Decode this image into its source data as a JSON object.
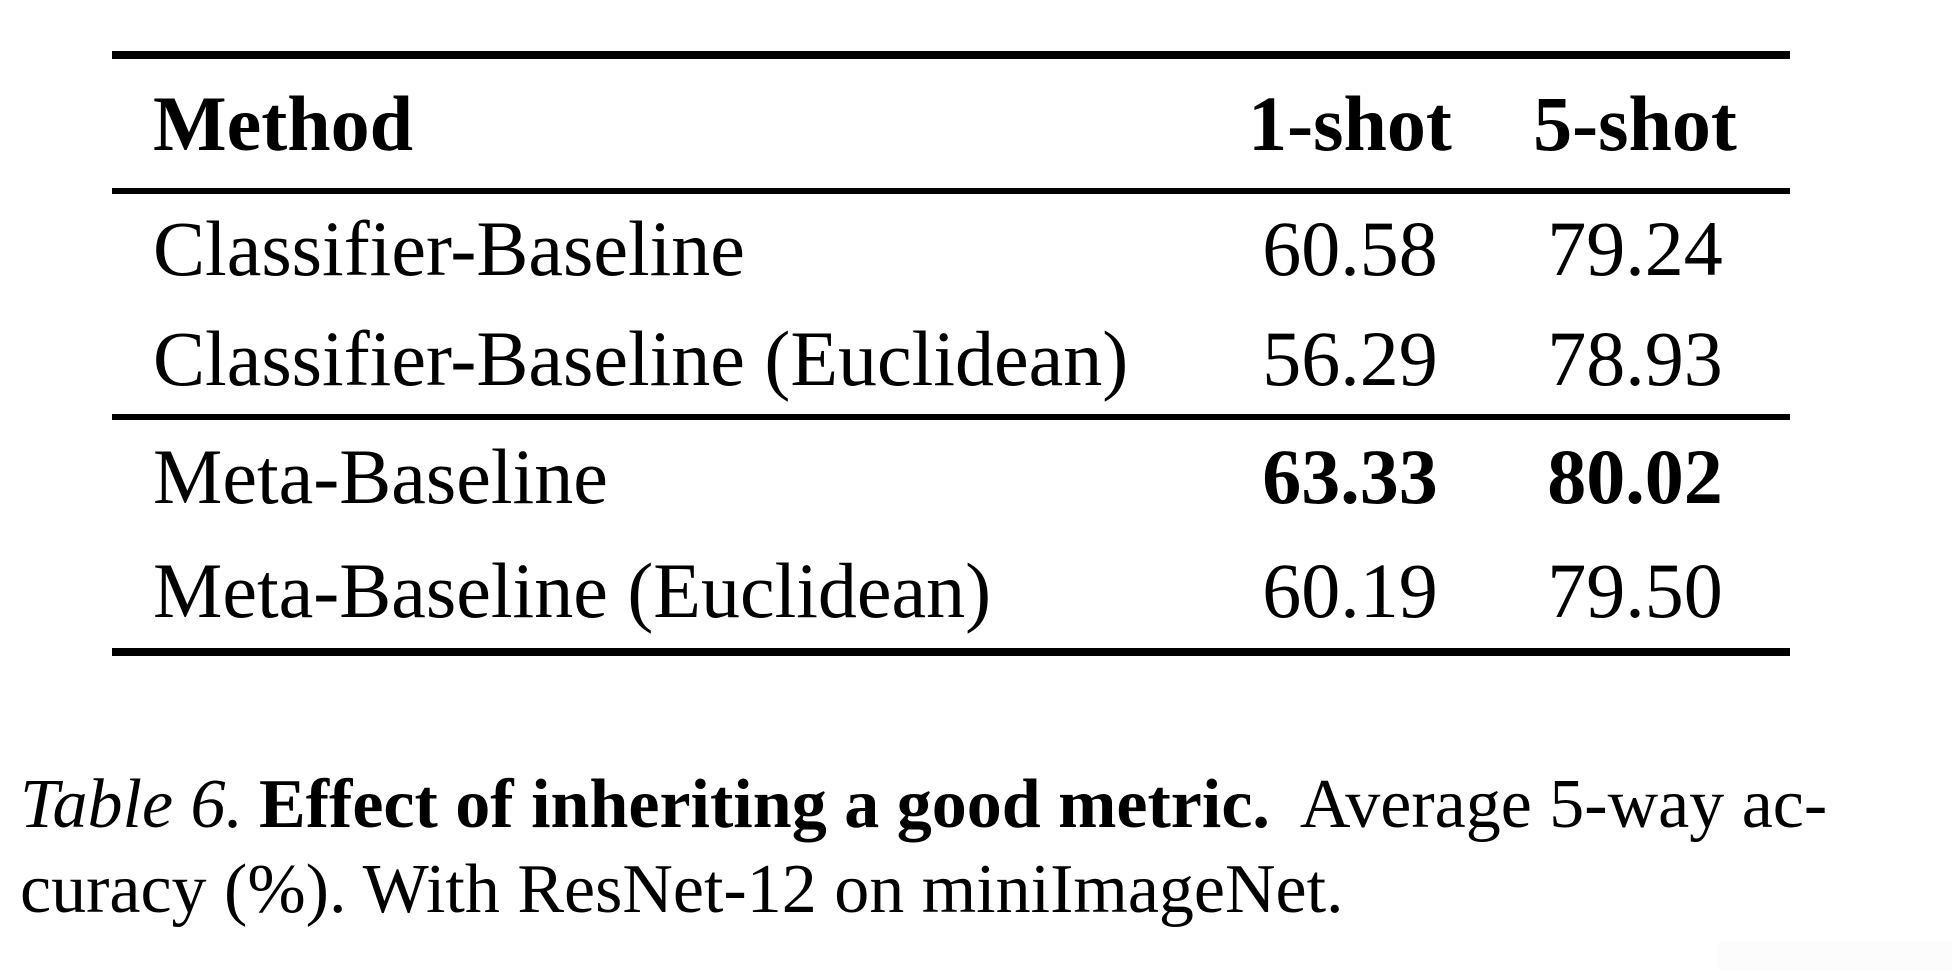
{
  "table": {
    "columns": [
      "Method",
      "1-shot",
      "5-shot"
    ],
    "groups": [
      {
        "rows": [
          {
            "method": "Classifier-Baseline",
            "one_shot": "60.58",
            "five_shot": "79.24"
          },
          {
            "method": "Classifier-Baseline (Euclidean)",
            "one_shot": "56.29",
            "five_shot": "78.93"
          }
        ]
      },
      {
        "rows": [
          {
            "method": "Meta-Baseline",
            "one_shot": "63.33",
            "five_shot": "80.02"
          },
          {
            "method": "Meta-Baseline (Euclidean)",
            "one_shot": "60.19",
            "five_shot": "79.50"
          }
        ]
      }
    ]
  },
  "caption": {
    "label": "Table 6.",
    "bold_title": "Effect of inheriting a good metric.",
    "line1_rest": "Average 5-way ac-",
    "line2": "curacy (%). With ResNet-12 on miniImageNet."
  },
  "colors": {
    "text": "#000000",
    "background": "#ffffff",
    "rule": "#000000"
  }
}
